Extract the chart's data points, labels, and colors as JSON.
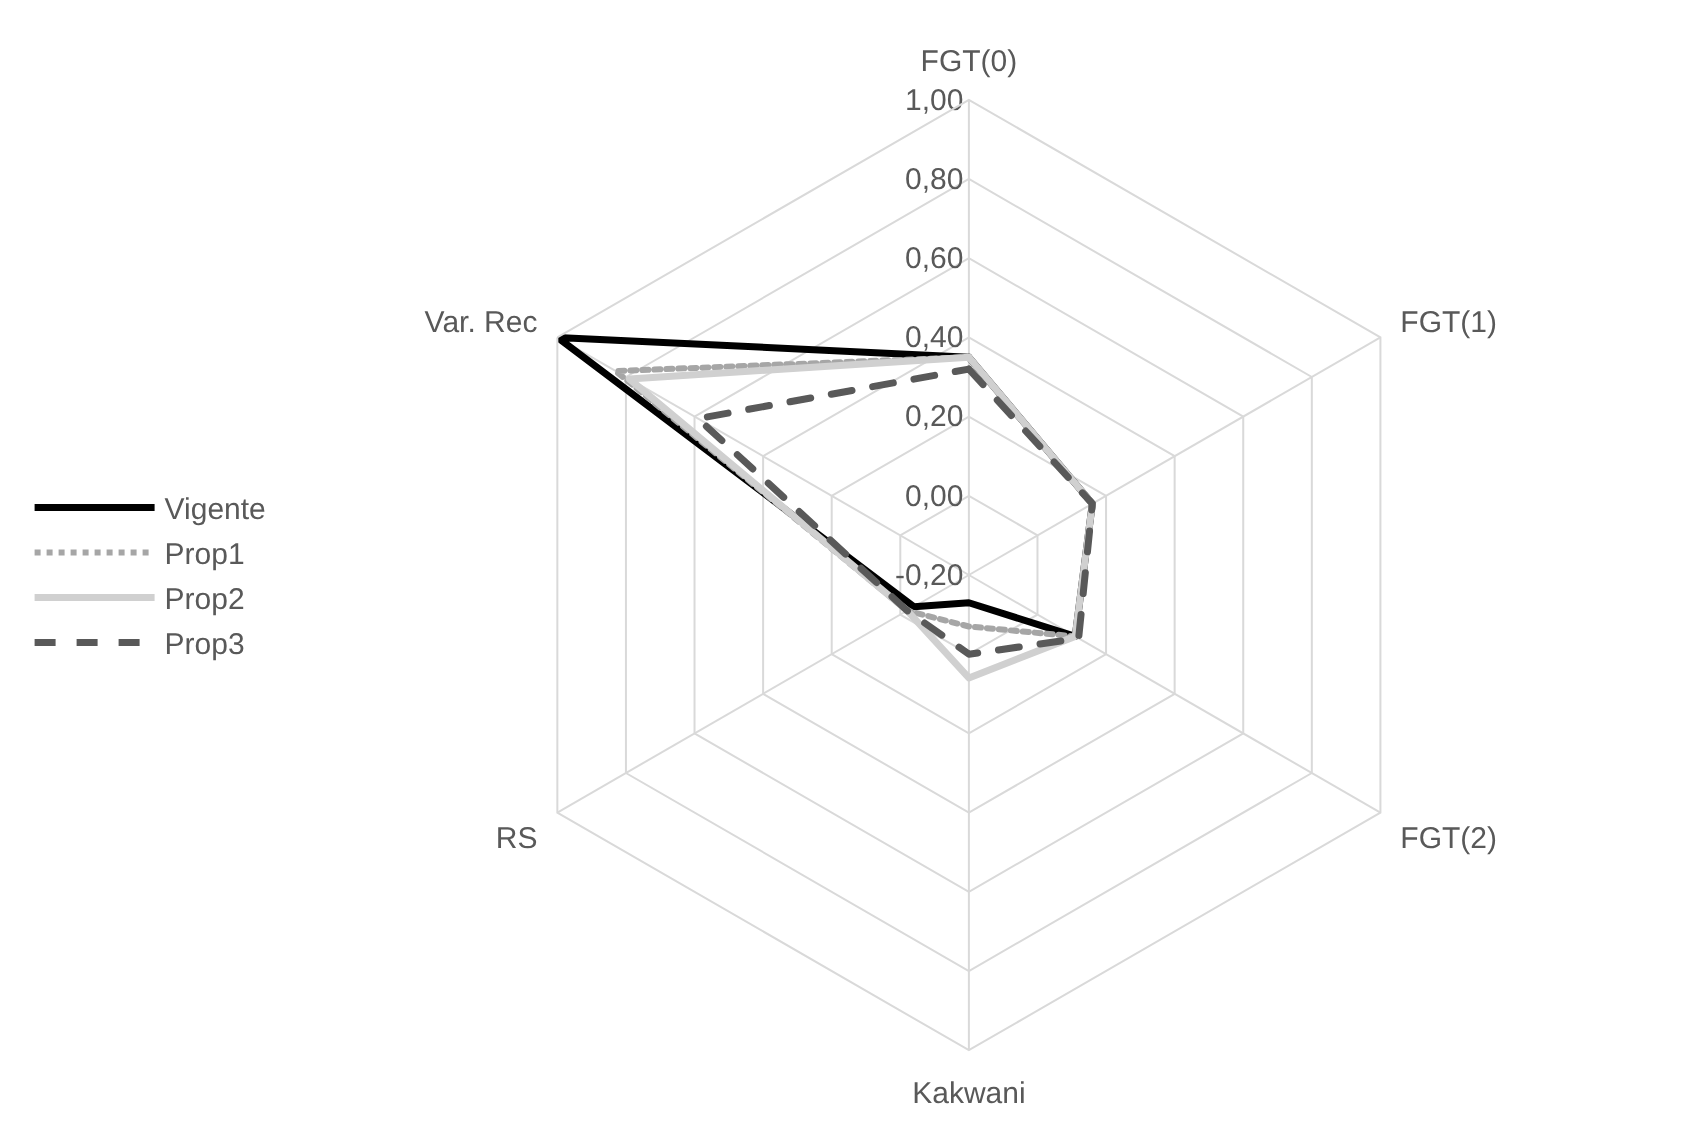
{
  "chart_data": {
    "type": "radar",
    "categories": [
      "FGT(0)",
      "FGT(1)",
      "FGT(2)",
      "Kakwani",
      "RS",
      "Var. Rec"
    ],
    "series": [
      {
        "name": "Vigente",
        "color": "#000000",
        "line_style": "solid",
        "values": [
          0.35,
          0.16,
          0.11,
          -0.13,
          -0.04,
          1.0
        ]
      },
      {
        "name": "Prop1",
        "color": "#a6a6a6",
        "line_style": "dotted",
        "values": [
          0.35,
          0.16,
          0.11,
          -0.07,
          -0.02,
          0.83
        ]
      },
      {
        "name": "Prop2",
        "color": "#d0d0d0",
        "line_style": "solid",
        "values": [
          0.35,
          0.16,
          0.11,
          0.06,
          -0.02,
          0.79
        ]
      },
      {
        "name": "Prop3",
        "color": "#595959",
        "line_style": "dashed",
        "values": [
          0.32,
          0.16,
          0.12,
          0.0,
          -0.02,
          0.59
        ]
      }
    ],
    "ylim": [
      -0.2,
      1.0
    ],
    "yticks": [
      {
        "value": -0.2,
        "label": "-0,20"
      },
      {
        "value": 0.0,
        "label": "0,00"
      },
      {
        "value": 0.2,
        "label": "0,20"
      },
      {
        "value": 0.4,
        "label": "0,40"
      },
      {
        "value": 0.6,
        "label": "0,60"
      },
      {
        "value": 0.8,
        "label": "0,80"
      },
      {
        "value": 1.0,
        "label": "1,00"
      }
    ],
    "grid": true,
    "legend": "left",
    "marker": "none"
  }
}
